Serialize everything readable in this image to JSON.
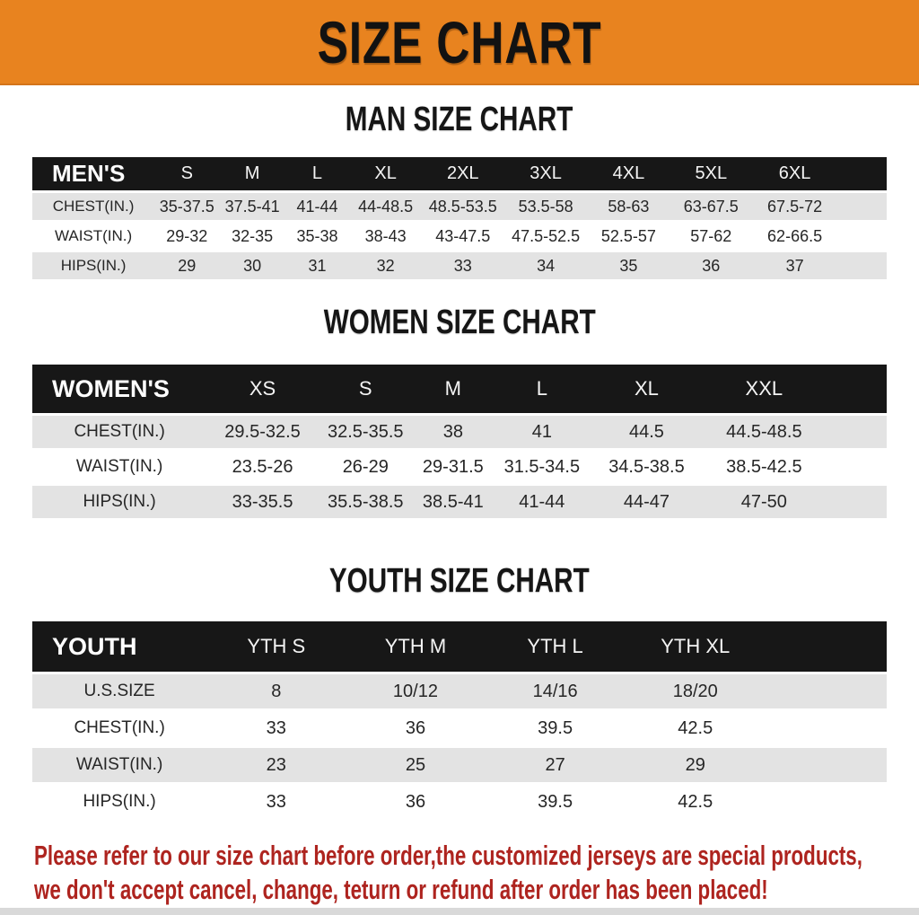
{
  "banner": {
    "title": "SIZE CHART",
    "bg_color": "#e8831f",
    "text_color": "#121212"
  },
  "sections": [
    {
      "title": "MAN SIZE CHART",
      "table": {
        "header": [
          "MEN'S",
          "S",
          "M",
          "L",
          "XL",
          "2XL",
          "3XL",
          "4XL",
          "5XL",
          "6XL"
        ],
        "rows": [
          [
            "CHEST(IN.)",
            "35-37.5",
            "37.5-41",
            "41-44",
            "44-48.5",
            "48.5-53.5",
            "53.5-58",
            "58-63",
            "63-67.5",
            "67.5-72"
          ],
          [
            "WAIST(IN.)",
            "29-32",
            "32-35",
            "35-38",
            "38-43",
            "43-47.5",
            "47.5-52.5",
            "52.5-57",
            "57-62",
            "62-66.5"
          ],
          [
            "HIPS(IN.)",
            "29",
            "30",
            "31",
            "32",
            "33",
            "34",
            "35",
            "36",
            "37"
          ]
        ]
      }
    },
    {
      "title": "WOMEN SIZE CHART",
      "table": {
        "header": [
          "WOMEN'S",
          "XS",
          "S",
          "M",
          "L",
          "XL",
          "XXL"
        ],
        "rows": [
          [
            "CHEST(IN.)",
            "29.5-32.5",
            "32.5-35.5",
            "38",
            "41",
            "44.5",
            "44.5-48.5"
          ],
          [
            "WAIST(IN.)",
            "23.5-26",
            "26-29",
            "29-31.5",
            "31.5-34.5",
            "34.5-38.5",
            "38.5-42.5"
          ],
          [
            "HIPS(IN.)",
            "33-35.5",
            "35.5-38.5",
            "38.5-41",
            "41-44",
            "44-47",
            "47-50"
          ]
        ]
      }
    },
    {
      "title": "YOUTH SIZE CHART",
      "table": {
        "header": [
          "YOUTH",
          "YTH S",
          "YTH M",
          "YTH L",
          "YTH XL"
        ],
        "rows": [
          [
            "U.S.SIZE",
            "8",
            "10/12",
            "14/16",
            "18/20"
          ],
          [
            "CHEST(IN.)",
            "33",
            "36",
            "39.5",
            "42.5"
          ],
          [
            "WAIST(IN.)",
            "23",
            "25",
            "27",
            "29"
          ],
          [
            "HIPS(IN.)",
            "33",
            "36",
            "39.5",
            "42.5"
          ]
        ]
      }
    }
  ],
  "disclaimer": {
    "line1": "Please refer to our size chart before order,the customized jerseys are special products,",
    "line2": "we don't accept cancel, change, teturn or refund after order has been placed!",
    "color": "#ae241f"
  }
}
